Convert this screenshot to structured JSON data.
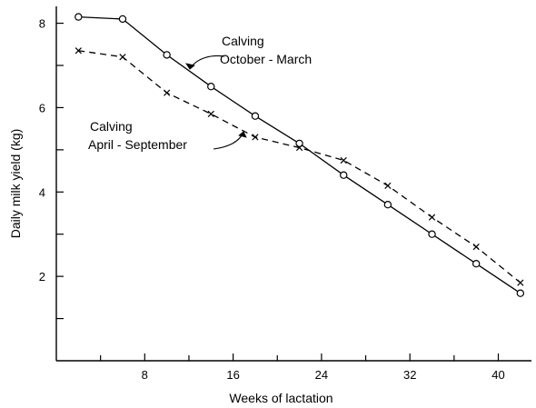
{
  "chart_data": {
    "type": "line",
    "title": "",
    "xlabel": "Weeks of lactation",
    "ylabel": "Daily milk yield (kg)",
    "xlim": [
      0,
      43
    ],
    "ylim": [
      0,
      8.4
    ],
    "xticks": [
      8,
      16,
      24,
      32,
      40
    ],
    "yticks": [
      2,
      4,
      6,
      8
    ],
    "grid": false,
    "legend": "none",
    "series": [
      {
        "name": "Calving\nOctober - March",
        "marker": "circle",
        "line_style": "solid",
        "x": [
          2,
          6,
          10,
          14,
          18,
          22,
          26,
          30,
          34,
          38,
          42
        ],
        "y": [
          8.15,
          8.1,
          7.25,
          6.5,
          5.8,
          5.15,
          4.4,
          3.7,
          3.0,
          2.3,
          1.6
        ]
      },
      {
        "name": "Calving\nApril - September",
        "marker": "x",
        "line_style": "dashed",
        "x": [
          2,
          6,
          10,
          14,
          18,
          22,
          26,
          30,
          34,
          38,
          42
        ],
        "y": [
          7.35,
          7.2,
          6.35,
          5.85,
          5.3,
          5.05,
          4.75,
          4.15,
          3.4,
          2.7,
          1.85
        ]
      }
    ],
    "annotations": [
      {
        "lines": [
          "Calving",
          "October - March"
        ],
        "series": 0
      },
      {
        "lines": [
          "Calving",
          "April - September"
        ],
        "series": 1
      }
    ]
  }
}
